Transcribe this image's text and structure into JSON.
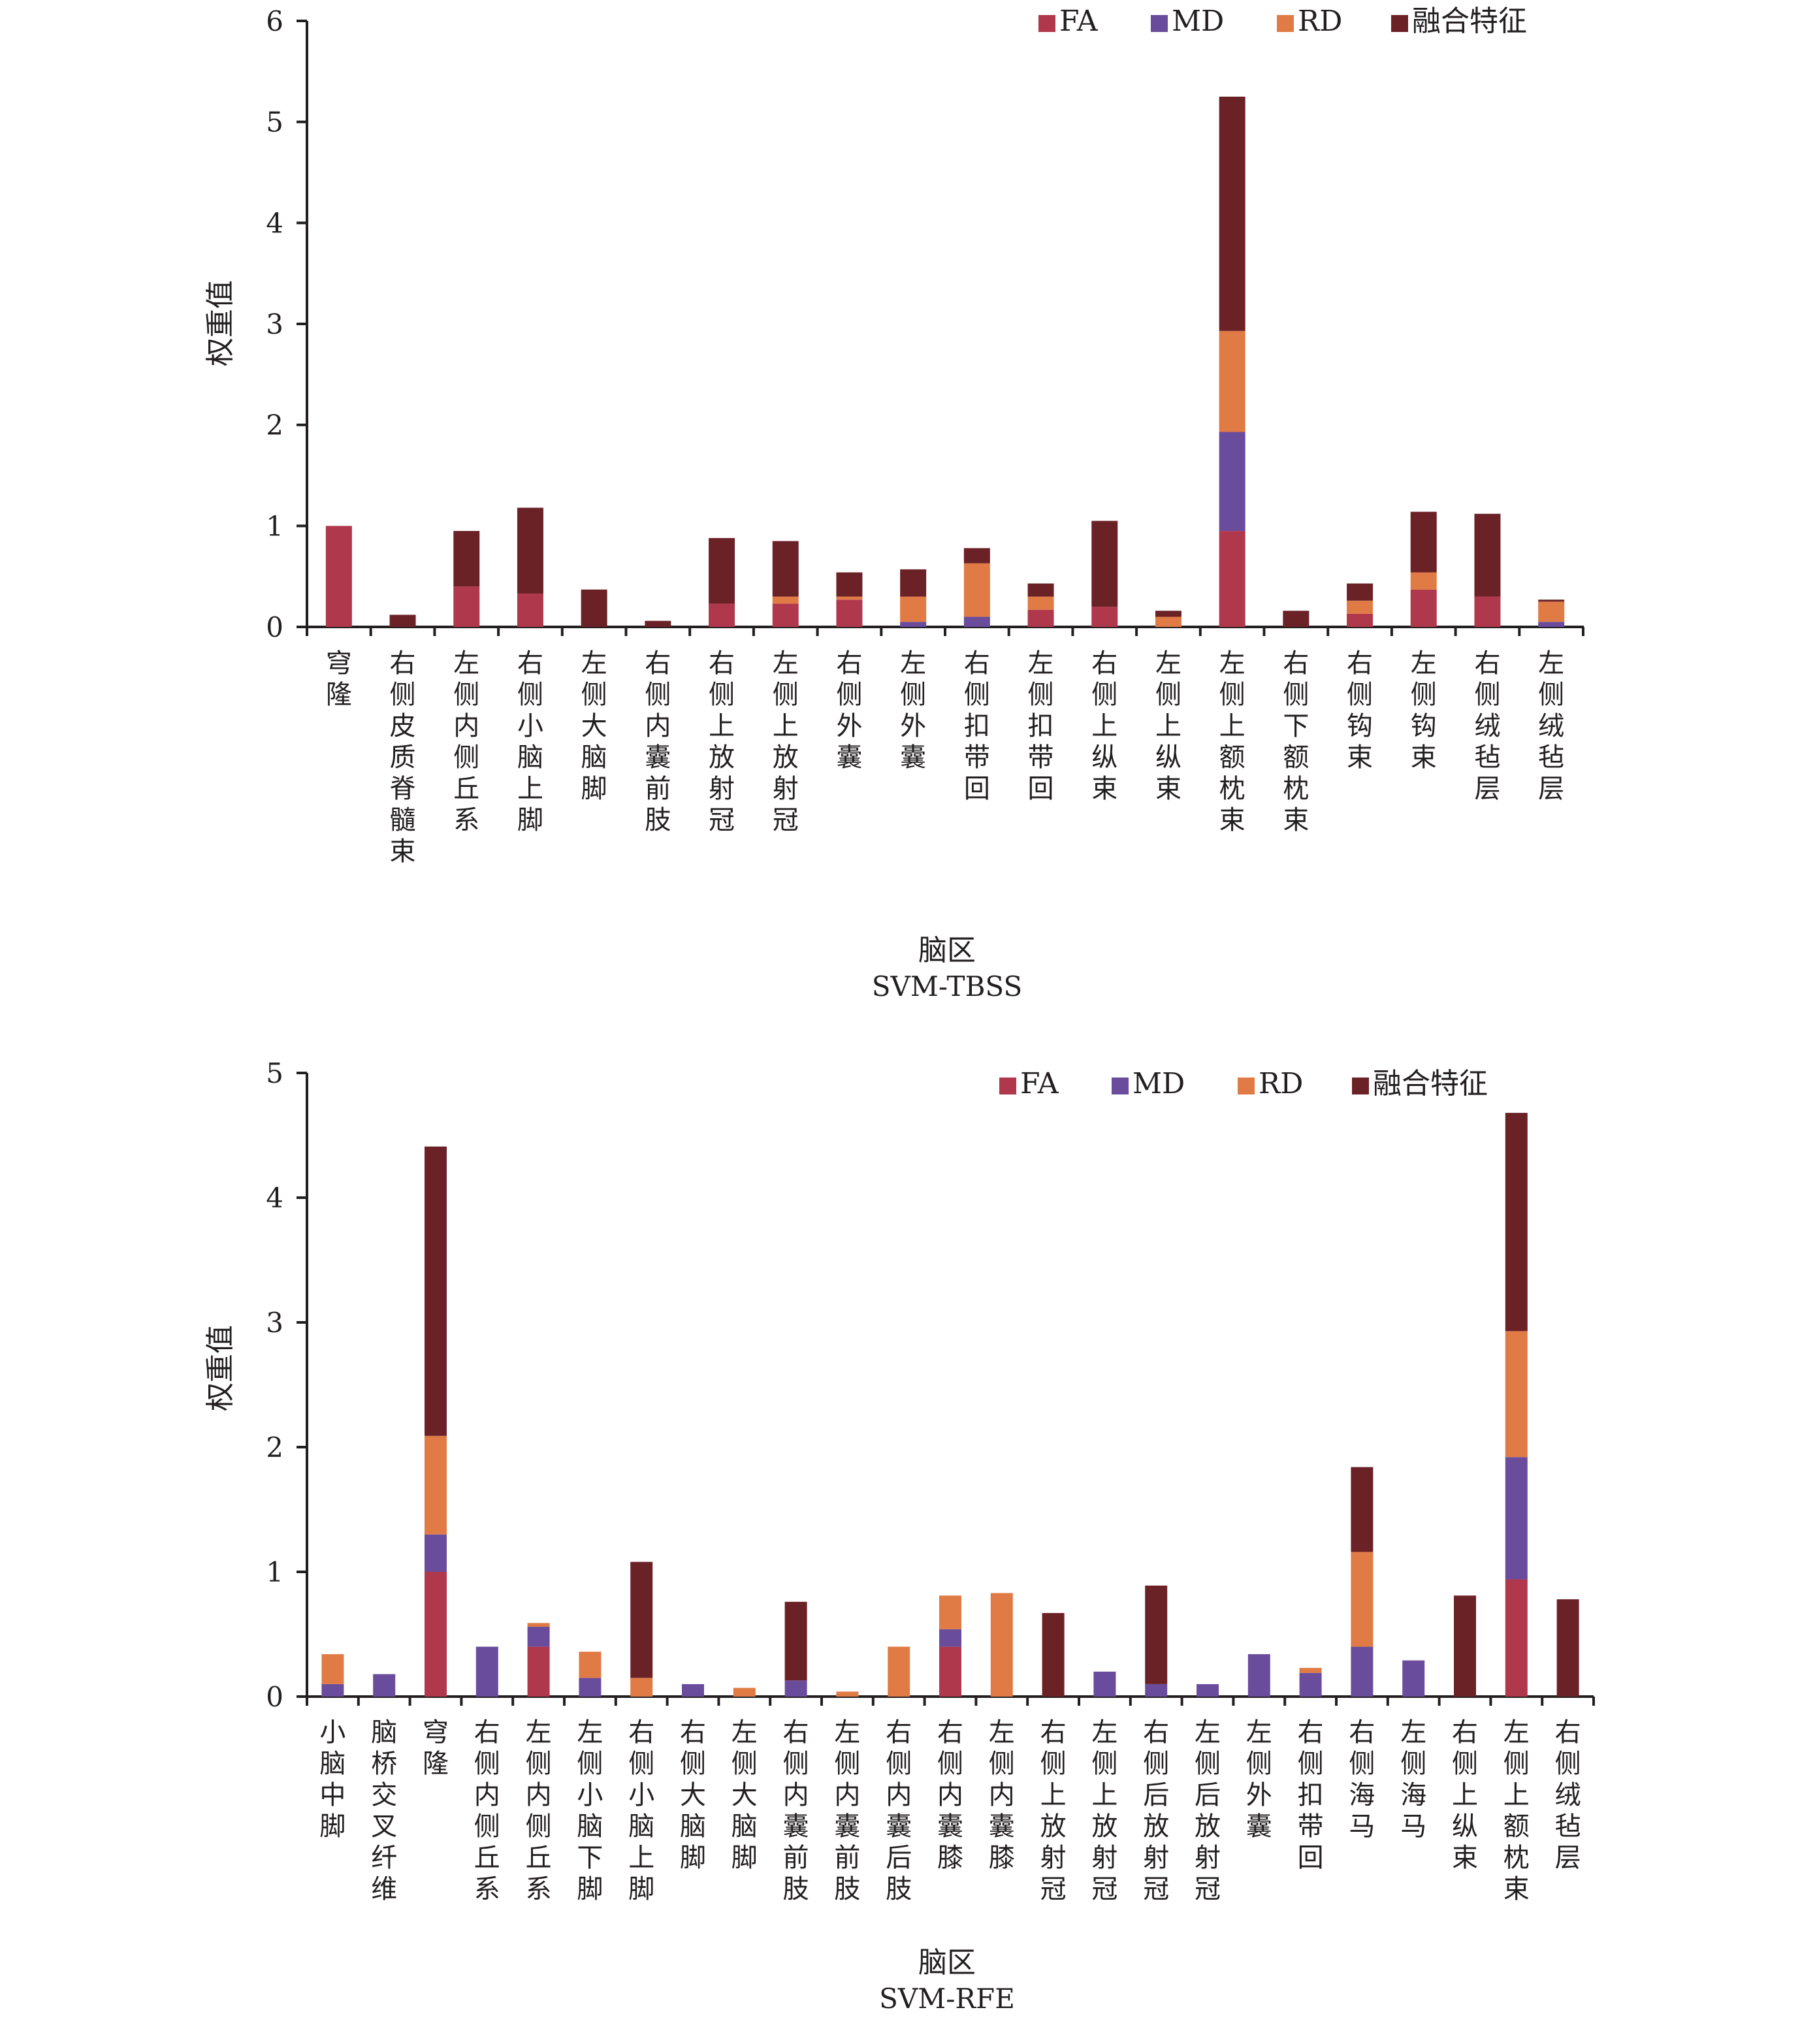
{
  "colors": {
    "FA": "#b0384c",
    "MD": "#6a4c9c",
    "RD": "#e07b45",
    "融合特征": "#6b2227",
    "axis": "#231f20"
  },
  "chart_data": [
    {
      "type": "bar",
      "stacked": true,
      "title": "",
      "subtitle": "SVM-TBSS",
      "xlabel": "脑区",
      "ylabel": "权重值",
      "ylim": [
        0,
        6
      ],
      "yticks": [
        0,
        1,
        2,
        3,
        4,
        5,
        6
      ],
      "grid": false,
      "legend_position": "top-right",
      "categories": [
        "穹隆",
        "右侧皮质脊髓束",
        "左侧内侧丘系",
        "右侧小脑上脚",
        "左侧大脑脚",
        "右侧内囊前肢",
        "右侧上放射冠",
        "左侧上放射冠",
        "右侧外囊",
        "左侧外囊",
        "右侧扣带回",
        "左侧扣带回",
        "右侧上纵束",
        "左侧上纵束",
        "左侧上额枕束",
        "右侧下额枕束",
        "右侧钩束",
        "左侧钩束",
        "右侧绒毡层",
        "左侧绒毡层"
      ],
      "series": [
        {
          "name": "FA",
          "values": [
            1.0,
            0.0,
            0.4,
            0.33,
            0.0,
            0.0,
            0.23,
            0.23,
            0.27,
            0.0,
            0.0,
            0.17,
            0.2,
            0.0,
            0.95,
            0.0,
            0.13,
            0.37,
            0.3,
            0.0
          ]
        },
        {
          "name": "MD",
          "values": [
            0.0,
            0.0,
            0.0,
            0.0,
            0.0,
            0.0,
            0.0,
            0.0,
            0.0,
            0.05,
            0.1,
            0.0,
            0.0,
            0.0,
            0.98,
            0.0,
            0.0,
            0.0,
            0.0,
            0.05
          ]
        },
        {
          "name": "RD",
          "values": [
            0.0,
            0.0,
            0.0,
            0.0,
            0.0,
            0.0,
            0.0,
            0.07,
            0.03,
            0.25,
            0.53,
            0.13,
            0.0,
            0.1,
            1.0,
            0.0,
            0.13,
            0.17,
            0.0,
            0.2
          ]
        },
        {
          "name": "融合特征",
          "values": [
            0.0,
            0.12,
            0.55,
            0.85,
            0.37,
            0.06,
            0.65,
            0.55,
            0.24,
            0.27,
            0.15,
            0.13,
            0.85,
            0.06,
            2.32,
            0.16,
            0.17,
            0.6,
            0.82,
            0.02
          ]
        }
      ]
    },
    {
      "type": "bar",
      "stacked": true,
      "title": "",
      "subtitle": "SVM-RFE",
      "xlabel": "脑区",
      "ylabel": "权重值",
      "ylim": [
        0,
        5
      ],
      "yticks": [
        0,
        1,
        2,
        3,
        4,
        5
      ],
      "grid": false,
      "legend_position": "top-right",
      "categories": [
        "小脑中脚",
        "脑桥交叉纤维",
        "穹隆",
        "右侧内侧丘系",
        "左侧内侧丘系",
        "左侧小脑下脚",
        "右侧小脑上脚",
        "右侧大脑脚",
        "左侧大脑脚",
        "右侧内囊前肢",
        "左侧内囊前肢",
        "右侧内囊后肢",
        "右侧内囊膝",
        "左侧内囊膝",
        "右侧上放射冠",
        "左侧上放射冠",
        "右侧后放射冠",
        "左侧后放射冠",
        "左侧外囊",
        "右侧扣带回",
        "右侧海马",
        "左侧海马",
        "右侧上纵束",
        "左侧上额枕束",
        "右侧绒毡层"
      ],
      "series": [
        {
          "name": "FA",
          "values": [
            0.0,
            0.0,
            1.0,
            0.0,
            0.4,
            0.0,
            0.0,
            0.0,
            0.0,
            0.0,
            0.0,
            0.0,
            0.4,
            0.0,
            0.0,
            0.0,
            0.0,
            0.0,
            0.0,
            0.0,
            0.0,
            0.0,
            0.0,
            0.94,
            0.0
          ]
        },
        {
          "name": "MD",
          "values": [
            0.1,
            0.18,
            0.3,
            0.4,
            0.16,
            0.15,
            0.0,
            0.1,
            0.0,
            0.13,
            0.0,
            0.0,
            0.14,
            0.0,
            0.0,
            0.2,
            0.1,
            0.1,
            0.34,
            0.19,
            0.4,
            0.29,
            0.0,
            0.98,
            0.0
          ]
        },
        {
          "name": "RD",
          "values": [
            0.24,
            0.0,
            0.79,
            0.0,
            0.03,
            0.21,
            0.15,
            0.0,
            0.07,
            0.0,
            0.04,
            0.4,
            0.27,
            0.83,
            0.0,
            0.0,
            0.0,
            0.0,
            0.0,
            0.04,
            0.76,
            0.0,
            0.0,
            1.01,
            0.0
          ]
        },
        {
          "name": "融合特征",
          "values": [
            0.0,
            0.0,
            2.32,
            0.0,
            0.0,
            0.0,
            0.93,
            0.0,
            0.0,
            0.63,
            0.0,
            0.0,
            0.0,
            0.0,
            0.67,
            0.0,
            0.79,
            0.0,
            0.0,
            0.0,
            0.68,
            0.0,
            0.81,
            1.75,
            0.78
          ]
        }
      ]
    }
  ]
}
